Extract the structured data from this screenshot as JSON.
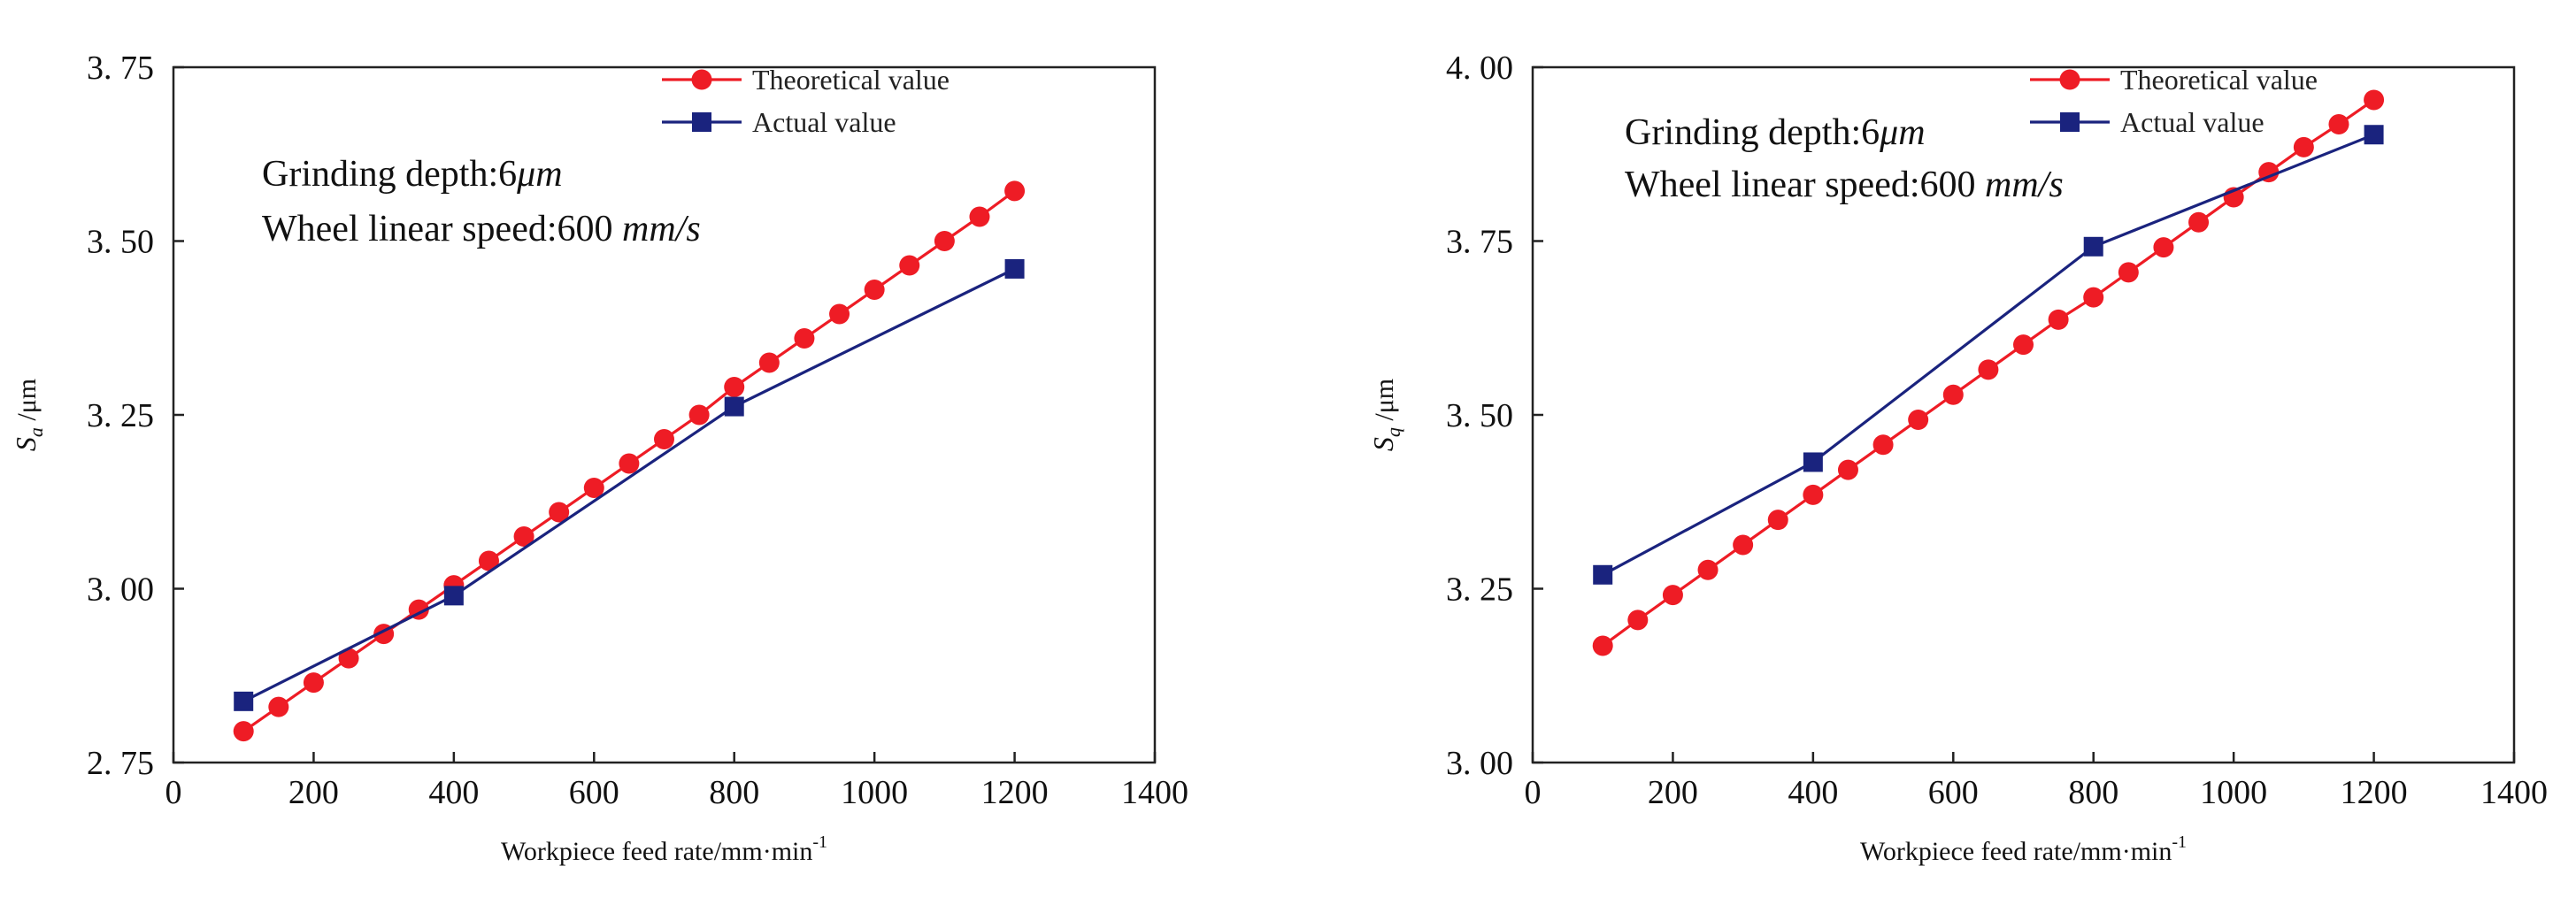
{
  "chart_data": [
    {
      "type": "line",
      "xlabel": "Workpiece feed rate/mm·min",
      "xlabel_superscript": "-1",
      "ylabel_symbol": "S",
      "ylabel_subscript": "a",
      "ylabel_unit": " /μm",
      "xlim": [
        0,
        1400
      ],
      "ylim": [
        2.75,
        3.75
      ],
      "xticks": [
        0,
        200,
        400,
        600,
        800,
        1000,
        1200,
        1400
      ],
      "yticks": [
        2.75,
        3.0,
        3.25,
        3.5,
        3.75
      ],
      "ytick_labels": [
        "2. 75",
        "3. 00",
        "3. 25",
        "3. 50",
        "3. 75"
      ],
      "grid": false,
      "legend_position": "top-right",
      "annotation": {
        "line1_prefix": "Grinding depth:6",
        "line1_unit": "μm",
        "line2_prefix": "Wheel linear speed:600 ",
        "line2_unit": "mm/s"
      },
      "series": [
        {
          "name": "Theoretical value",
          "color": "#ee1c25",
          "marker": "circle",
          "x": [
            100,
            150,
            200,
            250,
            300,
            350,
            400,
            450,
            500,
            550,
            600,
            650,
            700,
            750,
            800,
            850,
            900,
            950,
            1000,
            1050,
            1100,
            1150,
            1200
          ],
          "y": [
            2.795,
            2.83,
            2.865,
            2.9,
            2.935,
            2.97,
            3.005,
            3.04,
            3.075,
            3.11,
            3.145,
            3.18,
            3.215,
            3.25,
            3.29,
            3.325,
            3.36,
            3.395,
            3.43,
            3.465,
            3.5,
            3.535,
            3.572
          ]
        },
        {
          "name": "Actual value",
          "color": "#1a237e",
          "marker": "square",
          "x": [
            100,
            400,
            800,
            1200
          ],
          "y": [
            2.838,
            2.99,
            3.262,
            3.46
          ]
        }
      ]
    },
    {
      "type": "line",
      "xlabel": "Workpiece feed rate/mm·min",
      "xlabel_superscript": "-1",
      "ylabel_symbol": "S",
      "ylabel_subscript": "q",
      "ylabel_unit": " /μm",
      "xlim": [
        0,
        1400
      ],
      "ylim": [
        3.0,
        4.0
      ],
      "xticks": [
        0,
        200,
        400,
        600,
        800,
        1000,
        1200,
        1400
      ],
      "yticks": [
        3.0,
        3.25,
        3.5,
        3.75,
        4.0
      ],
      "ytick_labels": [
        "3. 00",
        "3. 25",
        "3. 50",
        "3. 75",
        "4. 00"
      ],
      "grid": false,
      "legend_position": "top-right",
      "annotation": {
        "line1_prefix": "Grinding depth:6",
        "line1_unit": "μm",
        "line2_prefix": "Wheel linear speed:600 ",
        "line2_unit": "mm/s"
      },
      "series": [
        {
          "name": "Theoretical value",
          "color": "#ee1c25",
          "marker": "circle",
          "x": [
            100,
            150,
            200,
            250,
            300,
            350,
            400,
            450,
            500,
            550,
            600,
            650,
            700,
            750,
            800,
            850,
            900,
            950,
            1000,
            1050,
            1100,
            1150,
            1200
          ],
          "y": [
            3.168,
            3.205,
            3.241,
            3.277,
            3.313,
            3.349,
            3.385,
            3.421,
            3.457,
            3.493,
            3.529,
            3.565,
            3.601,
            3.637,
            3.669,
            3.705,
            3.741,
            3.777,
            3.813,
            3.849,
            3.885,
            3.918,
            3.953
          ]
        },
        {
          "name": "Actual value",
          "color": "#1a237e",
          "marker": "square",
          "x": [
            100,
            400,
            800,
            1200
          ],
          "y": [
            3.27,
            3.432,
            3.742,
            3.903
          ]
        }
      ]
    }
  ]
}
